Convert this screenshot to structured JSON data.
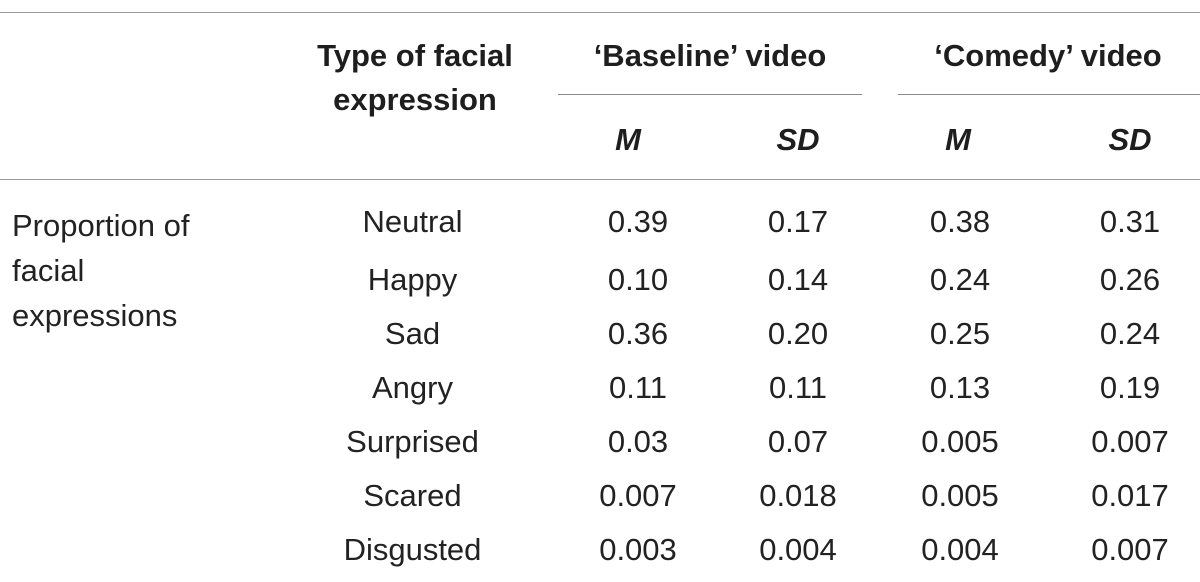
{
  "table": {
    "header": {
      "type_col": "Type of facial expression",
      "group1": "‘Baseline’ video",
      "group2": "‘Comedy’ video",
      "sub": [
        "M",
        "SD",
        "M",
        "SD"
      ]
    },
    "row_group_label": "Proportion of facial expressions",
    "rows": [
      {
        "type": "Neutral",
        "values": [
          "0.39",
          "0.17",
          "0.38",
          "0.31"
        ]
      },
      {
        "type": "Happy",
        "values": [
          "0.10",
          "0.14",
          "0.24",
          "0.26"
        ]
      },
      {
        "type": "Sad",
        "values": [
          "0.36",
          "0.20",
          "0.25",
          "0.24"
        ]
      },
      {
        "type": "Angry",
        "values": [
          "0.11",
          "0.11",
          "0.13",
          "0.19"
        ]
      },
      {
        "type": "Surprised",
        "values": [
          "0.03",
          "0.07",
          "0.005",
          "0.007"
        ]
      },
      {
        "type": "Scared",
        "values": [
          "0.007",
          "0.018",
          "0.005",
          "0.017"
        ]
      },
      {
        "type": "Disgusted",
        "values": [
          "0.003",
          "0.004",
          "0.004",
          "0.007"
        ]
      }
    ]
  }
}
